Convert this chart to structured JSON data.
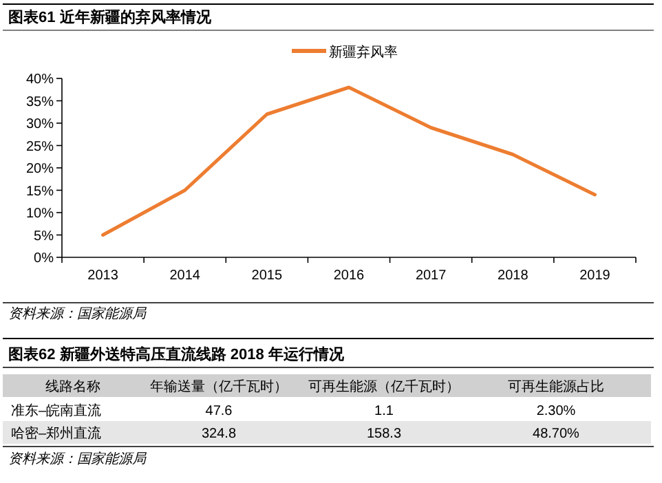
{
  "chart_data": [
    {
      "type": "line",
      "title": "图表61  近年新疆的弃风率情况",
      "categories": [
        "2013",
        "2014",
        "2015",
        "2016",
        "2017",
        "2018",
        "2019"
      ],
      "series": [
        {
          "name": "新疆弃风率",
          "color": "#ed7d31",
          "values": [
            5,
            15,
            32,
            38,
            29,
            23,
            14
          ]
        }
      ],
      "ylim": [
        0,
        40
      ],
      "yticks": [
        {
          "value": 0,
          "label": "0%"
        },
        {
          "value": 5,
          "label": "5%"
        },
        {
          "value": 10,
          "label": "10%"
        },
        {
          "value": 15,
          "label": "15%"
        },
        {
          "value": 20,
          "label": "20%"
        },
        {
          "value": 25,
          "label": "25%"
        },
        {
          "value": 30,
          "label": "30%"
        },
        {
          "value": 35,
          "label": "35%"
        },
        {
          "value": 40,
          "label": "40%"
        }
      ],
      "legend": "top",
      "grid": false,
      "marker": "none",
      "annotations": [
        "资料来源：国家能源局"
      ]
    },
    {
      "type": "other",
      "title": "图表62  新疆外送特高压直流线路 2018 年运行情况",
      "ylabel": "线路名称",
      "categories": [
        "年输送量（亿千瓦时）",
        "可再生能源（亿千瓦时）",
        "可再生能源占比"
      ],
      "y_categories": [
        "准东–皖南直流",
        "哈密–郑州直流"
      ],
      "cell_labels": [
        [
          "47.6",
          "1.1",
          "2.30%"
        ],
        [
          "324.8",
          "158.3",
          "48.70%"
        ]
      ],
      "annotations": [
        "资料来源：国家能源局"
      ]
    }
  ]
}
